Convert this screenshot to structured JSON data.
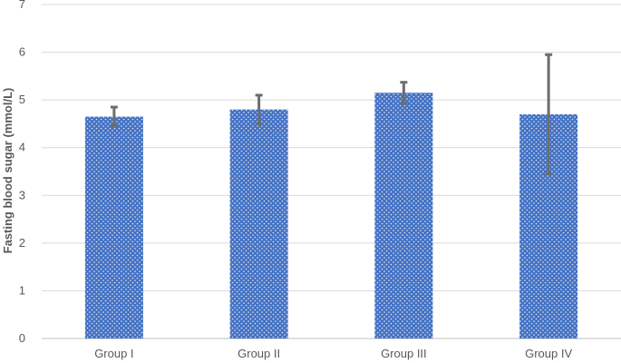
{
  "chart_data": {
    "type": "bar",
    "title": "",
    "xlabel": "",
    "ylabel": "Fasting blood sugar (mmol/L)",
    "categories": [
      "Group I",
      "Group II",
      "Group III",
      "Group IV"
    ],
    "values": [
      4.65,
      4.8,
      5.15,
      4.7
    ],
    "error": [
      0.2,
      0.3,
      0.22,
      1.25
    ],
    "ylim": [
      0,
      7
    ],
    "yticks": [
      "0",
      "1",
      "2",
      "3",
      "4",
      "5",
      "6",
      "7"
    ],
    "grid": true,
    "legend": "none",
    "colors": {
      "bar_fill": "#4472c4",
      "bar_dots": "#ffffff",
      "error_bar": "#6d6d6d",
      "gridline": "#d9d9d9",
      "text": "#595959"
    }
  }
}
